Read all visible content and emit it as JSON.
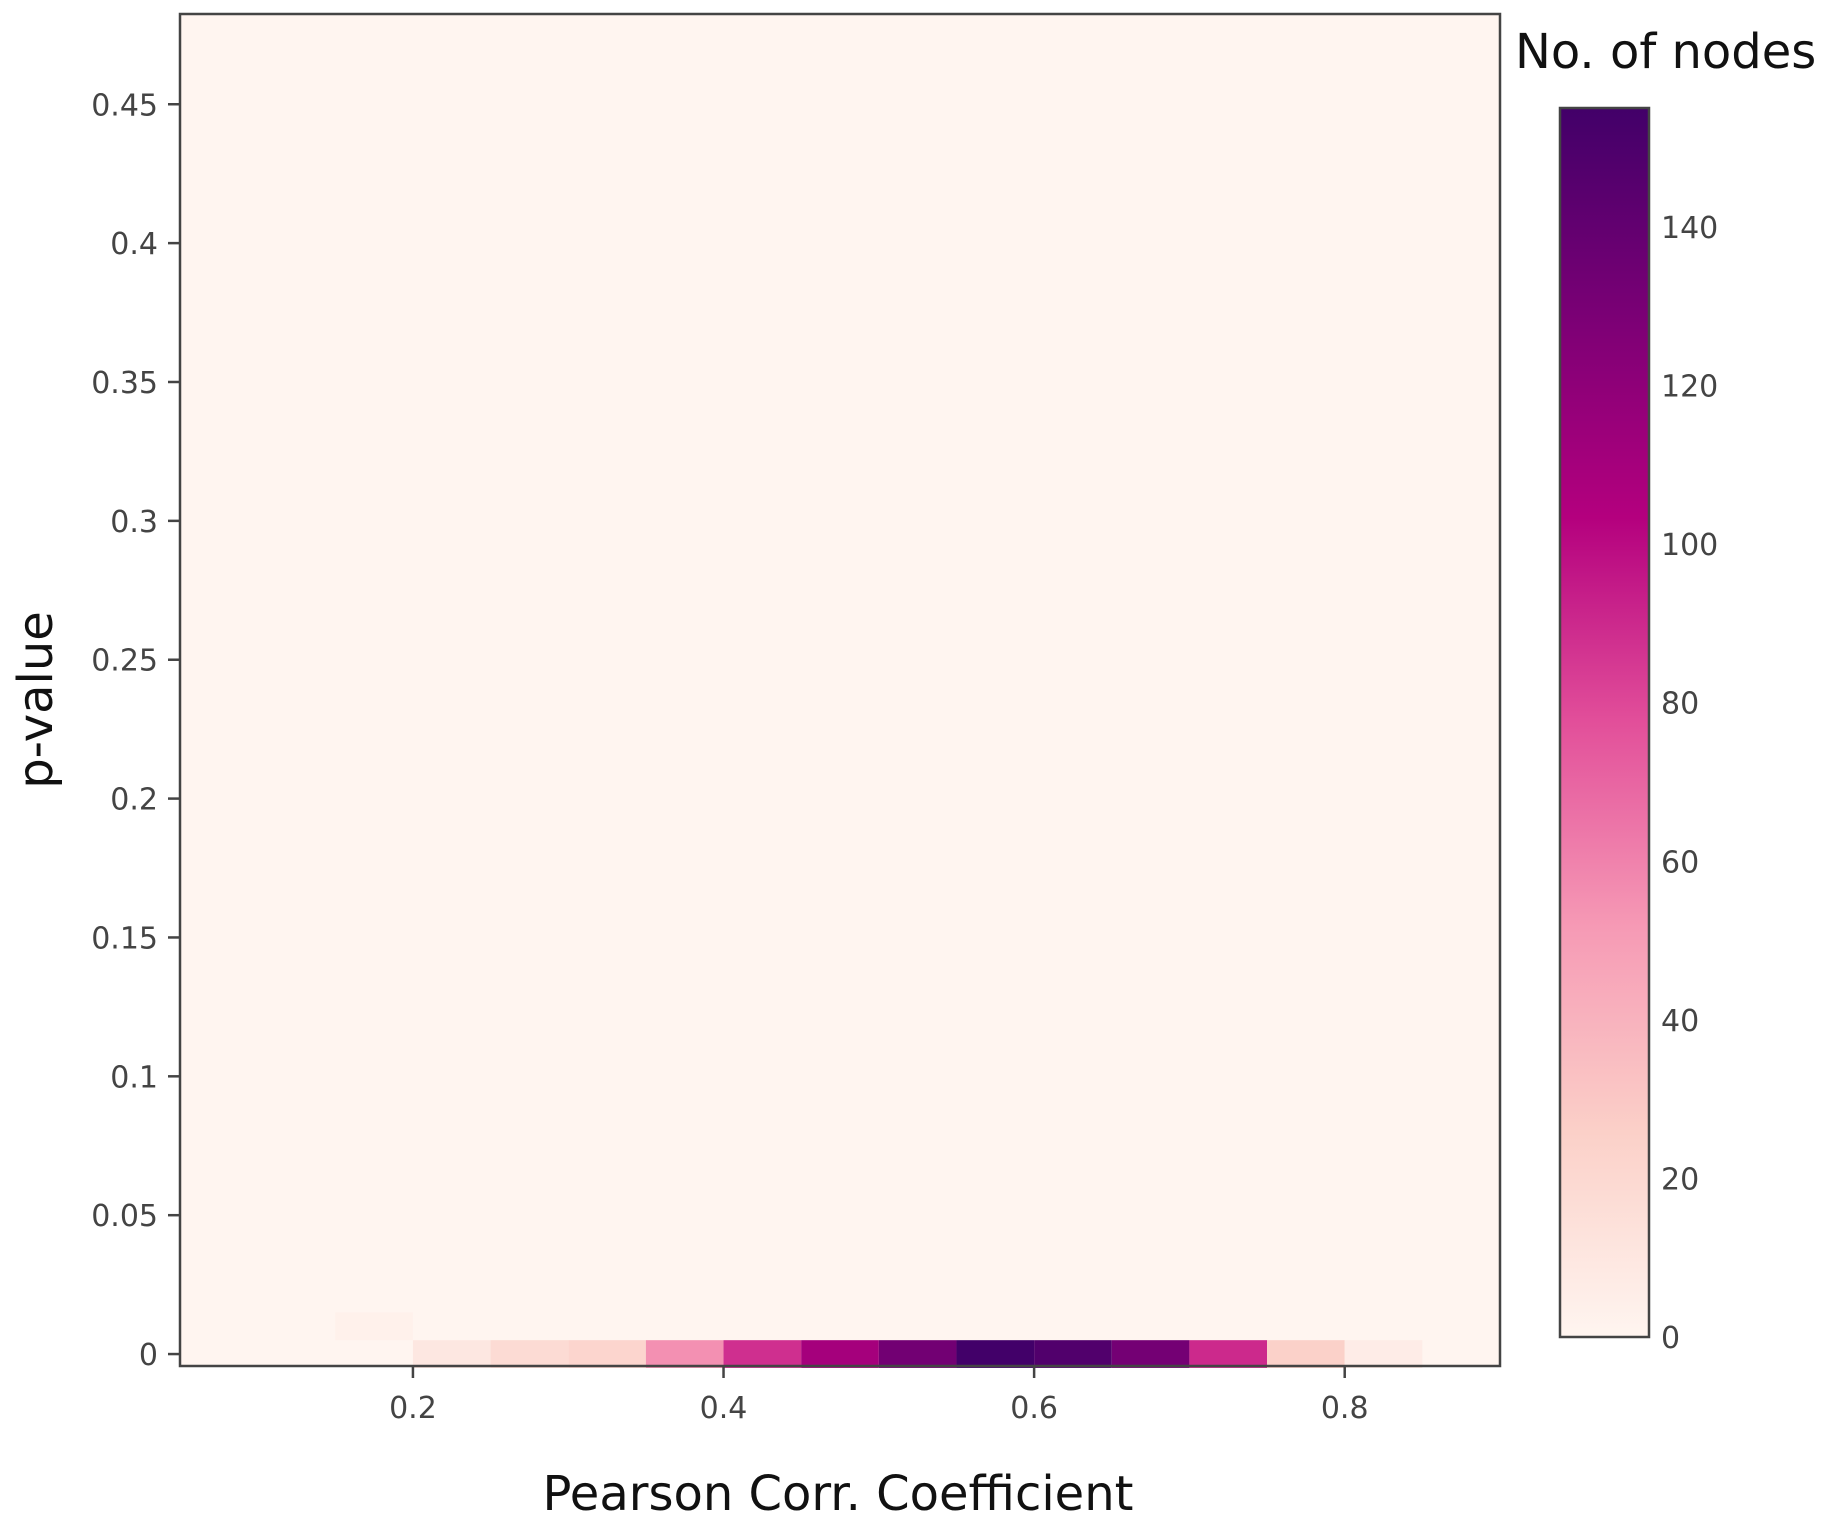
{
  "chart_data": {
    "type": "heatmap",
    "xlabel": "Pearson Corr. Coefficient",
    "ylabel": "p-value",
    "xlim": [
      0.05,
      0.9
    ],
    "ylim": [
      -0.0043,
      0.4825
    ],
    "x_ticks": [
      {
        "value": 0.2,
        "label": "0.2"
      },
      {
        "value": 0.4,
        "label": "0.4"
      },
      {
        "value": 0.6,
        "label": "0.6"
      },
      {
        "value": 0.8,
        "label": "0.8"
      }
    ],
    "y_ticks": [
      {
        "value": 0,
        "label": "0"
      },
      {
        "value": 0.05,
        "label": "0.05"
      },
      {
        "value": 0.1,
        "label": "0.1"
      },
      {
        "value": 0.15,
        "label": "0.15"
      },
      {
        "value": 0.2,
        "label": "0.2"
      },
      {
        "value": 0.25,
        "label": "0.25"
      },
      {
        "value": 0.3,
        "label": "0.3"
      },
      {
        "value": 0.35,
        "label": "0.35"
      },
      {
        "value": 0.4,
        "label": "0.4"
      },
      {
        "value": 0.45,
        "label": "0.45"
      }
    ],
    "bin_width_x": 0.05,
    "bin_height_y": 0.01,
    "cells": [
      {
        "x": 0.15,
        "y": 0.01,
        "count": 3
      },
      {
        "x": 0.2,
        "y": 0.0,
        "count": 10
      },
      {
        "x": 0.25,
        "y": 0.0,
        "count": 18
      },
      {
        "x": 0.3,
        "y": 0.0,
        "count": 22
      },
      {
        "x": 0.35,
        "y": 0.0,
        "count": 55
      },
      {
        "x": 0.4,
        "y": 0.0,
        "count": 88
      },
      {
        "x": 0.45,
        "y": 0.0,
        "count": 110
      },
      {
        "x": 0.5,
        "y": 0.0,
        "count": 133
      },
      {
        "x": 0.55,
        "y": 0.0,
        "count": 155
      },
      {
        "x": 0.6,
        "y": 0.0,
        "count": 148
      },
      {
        "x": 0.65,
        "y": 0.0,
        "count": 132
      },
      {
        "x": 0.7,
        "y": 0.0,
        "count": 90
      },
      {
        "x": 0.75,
        "y": 0.0,
        "count": 25
      },
      {
        "x": 0.8,
        "y": 0.0,
        "count": 6
      }
    ],
    "colorbar": {
      "title": "No. of nodes",
      "range": [
        0,
        155
      ],
      "ticks": [
        {
          "value": 0,
          "label": "0"
        },
        {
          "value": 20,
          "label": "20"
        },
        {
          "value": 40,
          "label": "40"
        },
        {
          "value": 60,
          "label": "60"
        },
        {
          "value": 80,
          "label": "80"
        },
        {
          "value": 100,
          "label": "100"
        },
        {
          "value": 120,
          "label": "120"
        },
        {
          "value": 140,
          "label": "140"
        }
      ],
      "colorscale": [
        "#fff5f0",
        "#fbd0c8",
        "#f69ab5",
        "#e24f9a",
        "#b4007e",
        "#7a0075",
        "#420069"
      ]
    },
    "grid": false
  }
}
